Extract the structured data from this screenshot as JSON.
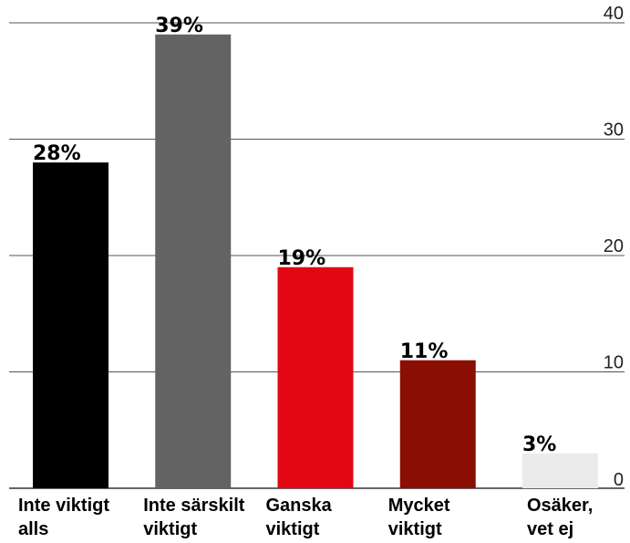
{
  "chart_data": {
    "type": "bar",
    "categories": [
      [
        "Inte viktigt",
        "alls"
      ],
      [
        "Inte särskilt",
        "viktigt"
      ],
      [
        "Ganska",
        "viktigt"
      ],
      [
        "Mycket",
        "viktigt"
      ],
      [
        "Osäker,",
        "vet ej"
      ]
    ],
    "values": [
      28,
      39,
      19,
      11,
      3
    ],
    "data_labels": [
      "28%",
      "39%",
      "19%",
      "11%",
      "3%"
    ],
    "colors": [
      "#000000",
      "#636363",
      "#e30613",
      "#8b0e04",
      "#ebebeb"
    ],
    "ylim": [
      0,
      40
    ],
    "yticks": [
      0,
      10,
      20,
      30,
      40
    ],
    "ytick_position": "right",
    "grid": true,
    "title": "",
    "xlabel": "",
    "ylabel": ""
  }
}
